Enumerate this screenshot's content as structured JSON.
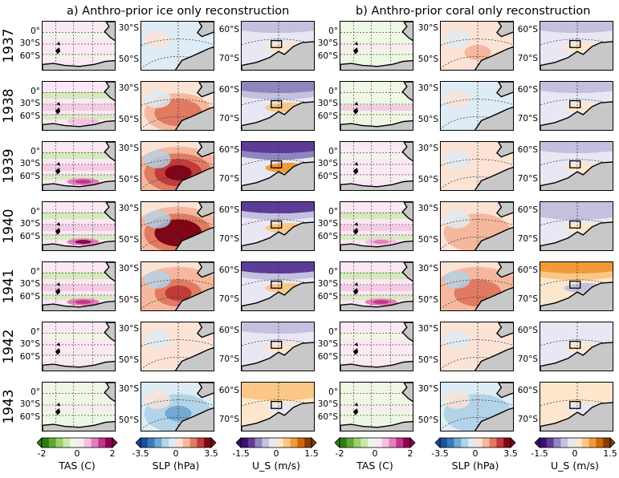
{
  "titles": {
    "left": "a) Anthro-prior ice only reconstruction",
    "right": "b) Anthro-prior coral only reconstruction"
  },
  "years": [
    "1937",
    "1938",
    "1939",
    "1940",
    "1941",
    "1942",
    "1943"
  ],
  "lat_labels": {
    "tas": [
      "0°",
      "30°S",
      "60°S"
    ],
    "slp": [
      "30°S",
      "50°S"
    ],
    "us": [
      "60°S",
      "70°S"
    ]
  },
  "colorbars": {
    "tas": {
      "label": "TAS (C)",
      "ticks": [
        "-2",
        "0",
        "2"
      ],
      "range": [
        -2,
        2
      ],
      "colors": [
        "#2e7d12",
        "#5fa832",
        "#9bd06a",
        "#cbe9ae",
        "#eef7e4",
        "#fbe8f4",
        "#f3c2e0",
        "#e27fbd",
        "#c5358b",
        "#8e0152"
      ]
    },
    "slp": {
      "label": "SLP (hPa)",
      "ticks": [
        "-3.5",
        "0",
        "3.5"
      ],
      "range": [
        -3.5,
        3.5
      ],
      "colors": [
        "#1c4f9c",
        "#3b7bbd",
        "#72a9d3",
        "#b3d3e8",
        "#deecf5",
        "#fbe3d6",
        "#f5b89e",
        "#e07b62",
        "#c23b3b",
        "#7f0616"
      ]
    },
    "us": {
      "label": "U_S (m/s)",
      "ticks": [
        "-1.5",
        "0",
        "1.5"
      ],
      "range": [
        -1.5,
        1.5
      ],
      "colors": [
        "#3b0f6f",
        "#5c3c98",
        "#8f86bd",
        "#c4c1df",
        "#e8e7f3",
        "#fde7cc",
        "#fbc786",
        "#f09a3a",
        "#cc6a08",
        "#8a3b04"
      ]
    }
  },
  "anomalies": {
    "ice": {
      "tas": [
        0.3,
        0.6,
        1.4,
        1.6,
        1.2,
        0.2,
        -0.3
      ],
      "slp": [
        -0.3,
        1.8,
        2.8,
        3.5,
        2.2,
        0.2,
        -1.5
      ],
      "us": [
        -0.4,
        -0.7,
        -1.1,
        -1.0,
        -0.9,
        -0.3,
        0.5
      ]
    },
    "coral": {
      "tas": [
        -0.3,
        -0.4,
        0.2,
        0.8,
        1.2,
        0.1,
        -0.3
      ],
      "slp": [
        0.8,
        -0.6,
        0.3,
        1.2,
        2.0,
        0.3,
        -1.2
      ],
      "us": [
        -0.3,
        -0.4,
        -0.3,
        -0.5,
        0.9,
        -0.2,
        0.2
      ]
    }
  }
}
